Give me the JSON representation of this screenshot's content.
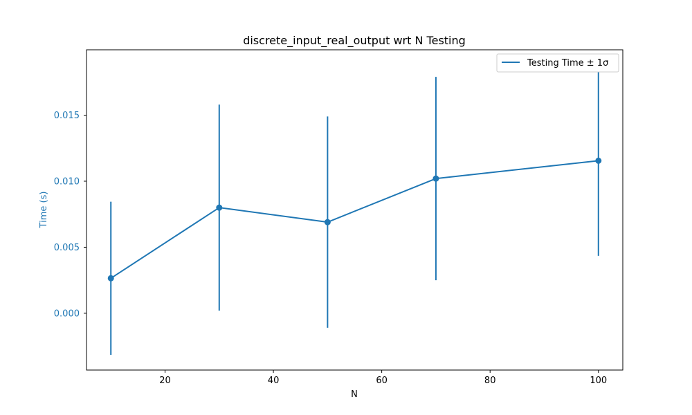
{
  "chart_data": {
    "type": "line",
    "title": "discrete_input_real_output wrt N Testing",
    "xlabel": "N",
    "ylabel": "Time (s)",
    "xlim": [
      5.5,
      104.5
    ],
    "ylim": [
      -0.0043,
      0.01995
    ],
    "xticks": [
      20,
      40,
      60,
      80,
      100
    ],
    "yticks": [
      0.0,
      0.005,
      0.01,
      0.015
    ],
    "ytick_labels": [
      "0.000",
      "0.005",
      "0.010",
      "0.015"
    ],
    "legend_position": "upper right",
    "grid": false,
    "series": [
      {
        "name": "Testing Time ± 1σ",
        "color": "#1f77b4",
        "x": [
          10,
          30,
          50,
          70,
          100
        ],
        "y": [
          0.00265,
          0.008,
          0.0069,
          0.0102,
          0.01155
        ],
        "yerr": [
          0.0058,
          0.0078,
          0.008,
          0.0077,
          0.0072
        ]
      }
    ],
    "ylabel_color": "#1f77b4",
    "ytick_color": "#1f77b4"
  }
}
